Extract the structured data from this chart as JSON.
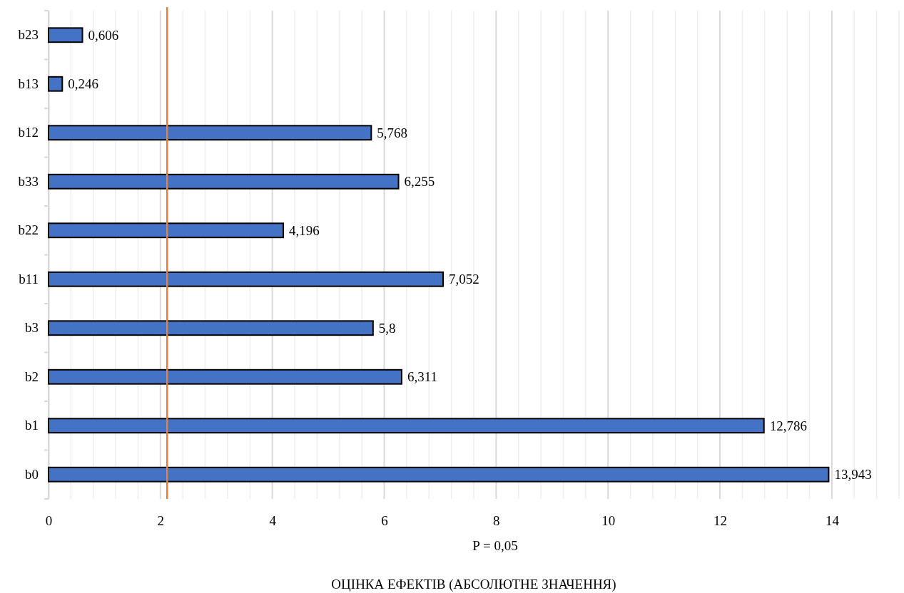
{
  "chart_data": {
    "type": "bar",
    "orientation": "horizontal",
    "xlabel": "ОЦІНКА ЕФЕКТІВ (АБСОЛЮТНЕ ЗНАЧЕННЯ)",
    "categories": [
      "b23",
      "b13",
      "b12",
      "b33",
      "b22",
      "b11",
      "b3",
      "b2",
      "b1",
      "b0"
    ],
    "values": [
      0.606,
      0.246,
      5.768,
      6.255,
      4.196,
      7.052,
      5.8,
      6.311,
      12.786,
      13.943
    ],
    "value_labels": [
      "0,606",
      "0,246",
      "5,768",
      "6,255",
      "4,196",
      "7,052",
      "5,8",
      "6,311",
      "12,786",
      "13,943"
    ],
    "color": "#4472c4",
    "xlim": [
      0,
      15.2
    ],
    "xticks": [
      0,
      {
        "value": 0.4,
        "label": null
      },
      {
        "value": 0.8,
        "label": null
      },
      {
        "value": 1.2,
        "label": null
      },
      {
        "value": 1.6,
        "label": null
      },
      2,
      {
        "value": 2.4,
        "label": null
      },
      {
        "value": 2.8,
        "label": null
      },
      {
        "value": 3.2,
        "label": null
      },
      {
        "value": 3.6,
        "label": null
      },
      4,
      {
        "value": 4.4,
        "label": null
      },
      {
        "value": 4.8,
        "label": null
      },
      {
        "value": 5.2,
        "label": null
      },
      {
        "value": 5.6,
        "label": null
      },
      6,
      {
        "value": 6.4,
        "label": null
      },
      {
        "value": 6.8,
        "label": null
      },
      {
        "value": 7.2,
        "label": null
      },
      {
        "value": 7.6,
        "label": null
      },
      8,
      {
        "value": 8.4,
        "label": null
      },
      {
        "value": 8.8,
        "label": null
      },
      {
        "value": 9.2,
        "label": null
      },
      {
        "value": 9.6,
        "label": null
      },
      10,
      {
        "value": 10.4,
        "label": null
      },
      {
        "value": 10.8,
        "label": null
      },
      {
        "value": 11.2,
        "label": null
      },
      {
        "value": 11.6,
        "label": null
      },
      12,
      {
        "value": 12.4,
        "label": null
      },
      {
        "value": 12.8,
        "label": null
      },
      {
        "value": 13.2,
        "label": null
      },
      {
        "value": 13.6,
        "label": null
      },
      14,
      {
        "value": 14.4,
        "label": null
      },
      {
        "value": 14.8,
        "label": null
      },
      {
        "value": 15.2,
        "label": null
      }
    ],
    "grid": true,
    "annotations": [
      "P = 0,05"
    ],
    "ref_lines": [
      {
        "axis": "x",
        "value": 2.12,
        "color": "#ed7d31"
      }
    ]
  }
}
